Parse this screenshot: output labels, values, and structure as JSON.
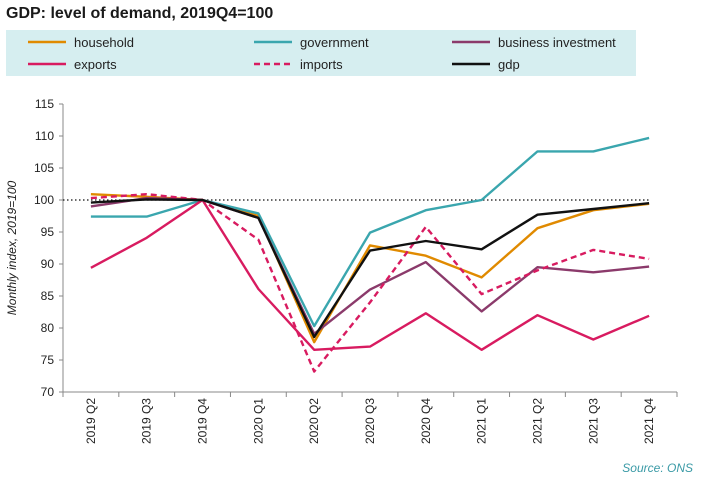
{
  "chart_data": {
    "type": "line",
    "title": "GDP: level of demand, 2019Q4=100",
    "ylabel": "Monthly index, 2019=100",
    "xlabel": "",
    "ylim": [
      70,
      115
    ],
    "yticks": [
      70,
      75,
      80,
      85,
      90,
      95,
      100,
      105,
      110,
      115
    ],
    "categories": [
      "2019 Q2",
      "2019 Q3",
      "2019 Q4",
      "2020 Q1",
      "2020 Q2",
      "2020 Q3",
      "2020 Q4",
      "2021 Q1",
      "2021 Q2",
      "2021 Q3",
      "2021 Q4"
    ],
    "reference_line": 100,
    "grid": false,
    "legend_position": "top",
    "series": [
      {
        "name": "household",
        "color": "#e08a00",
        "dash": "solid",
        "values": [
          100.9,
          100.5,
          100.0,
          97.5,
          77.8,
          92.9,
          91.3,
          87.9,
          95.6,
          98.4,
          99.4
        ]
      },
      {
        "name": "government",
        "color": "#3aa6ae",
        "dash": "solid",
        "values": [
          97.4,
          97.4,
          100.0,
          97.9,
          80.3,
          94.9,
          98.4,
          100.0,
          107.6,
          107.6,
          109.7
        ]
      },
      {
        "name": "business investment",
        "color": "#8b3a6b",
        "dash": "solid",
        "values": [
          99.0,
          100.3,
          100.0,
          97.2,
          79.1,
          86.0,
          90.3,
          82.6,
          89.5,
          88.7,
          89.6
        ]
      },
      {
        "name": "exports",
        "color": "#d81b60",
        "dash": "solid",
        "values": [
          89.4,
          94.1,
          100.0,
          86.1,
          76.6,
          77.1,
          82.3,
          76.6,
          82.0,
          78.2,
          81.9
        ]
      },
      {
        "name": "imports",
        "color": "#d81b60",
        "dash": "dashed",
        "values": [
          100.3,
          100.9,
          100.0,
          93.8,
          73.2,
          84.0,
          95.8,
          85.3,
          89.0,
          92.2,
          90.8
        ]
      },
      {
        "name": "gdp",
        "color": "#111111",
        "dash": "solid",
        "values": [
          99.6,
          100.1,
          100.0,
          97.2,
          78.6,
          92.1,
          93.6,
          92.3,
          97.7,
          98.6,
          99.5
        ]
      }
    ],
    "source": "Source:  ONS"
  }
}
